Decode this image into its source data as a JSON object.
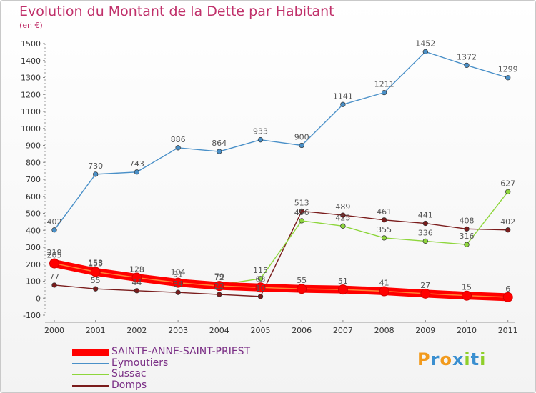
{
  "chart_data": {
    "type": "line",
    "title": "Evolution du Montant de la Dette par Habitant",
    "subtitle": "(en €)",
    "x": [
      "2000",
      "2001",
      "2002",
      "2003",
      "2004",
      "2005",
      "2006",
      "2007",
      "2008",
      "2009",
      "2010",
      "2011"
    ],
    "ylim": [
      -100,
      1500
    ],
    "yticks": [
      -100,
      0,
      100,
      200,
      300,
      400,
      500,
      600,
      700,
      800,
      900,
      1000,
      1100,
      1200,
      1300,
      1400,
      1500
    ],
    "grid": false,
    "legend_position": "bottom-left",
    "series": [
      {
        "name": "SAINTE-ANNE-SAINT-PRIEST",
        "color": "#ff0000",
        "values": [
          205,
          155,
          121,
          91,
          72,
          63,
          55,
          51,
          41,
          27,
          15,
          6
        ],
        "labels": [
          "205",
          "155",
          "121",
          "91",
          "72",
          "63",
          "55",
          "51",
          "41",
          "27",
          "15",
          "6"
        ]
      },
      {
        "name": "Eymoutiers",
        "color": "#4a90c8",
        "values": [
          402,
          730,
          743,
          886,
          864,
          933,
          900,
          1141,
          1211,
          1452,
          1372,
          1299
        ],
        "labels": [
          "402",
          "730",
          "743",
          "886",
          "864",
          "933",
          "900",
          "1141",
          "1211",
          "1452",
          "1372",
          "1299"
        ]
      },
      {
        "name": "Sussac",
        "color": "#8ed63c",
        "values": [
          219,
          158,
          118,
          104,
          79,
          115,
          456,
          425,
          355,
          336,
          316,
          627
        ],
        "labels": [
          "219",
          "158",
          "118",
          "104",
          "79",
          "115",
          "456",
          "425",
          "355",
          "336",
          "316",
          "627"
        ]
      },
      {
        "name": "Domps",
        "color": "#7a1c1c",
        "values": [
          77,
          55,
          44,
          34,
          22,
          10,
          513,
          489,
          461,
          441,
          408,
          402
        ],
        "labels": [
          "77",
          "55",
          "44",
          "34",
          "22",
          "10",
          "513",
          "489",
          "461",
          "441",
          "408",
          "402"
        ]
      }
    ]
  },
  "logo": {
    "letters": [
      "P",
      "r",
      "o",
      "x",
      "i",
      "t",
      "i"
    ],
    "colors": [
      "#f29a1c",
      "#3a8fd0",
      "#f29a1c",
      "#3a8fd0",
      "#8fcf2a",
      "#3a8fd0",
      "#8fcf2a"
    ]
  }
}
